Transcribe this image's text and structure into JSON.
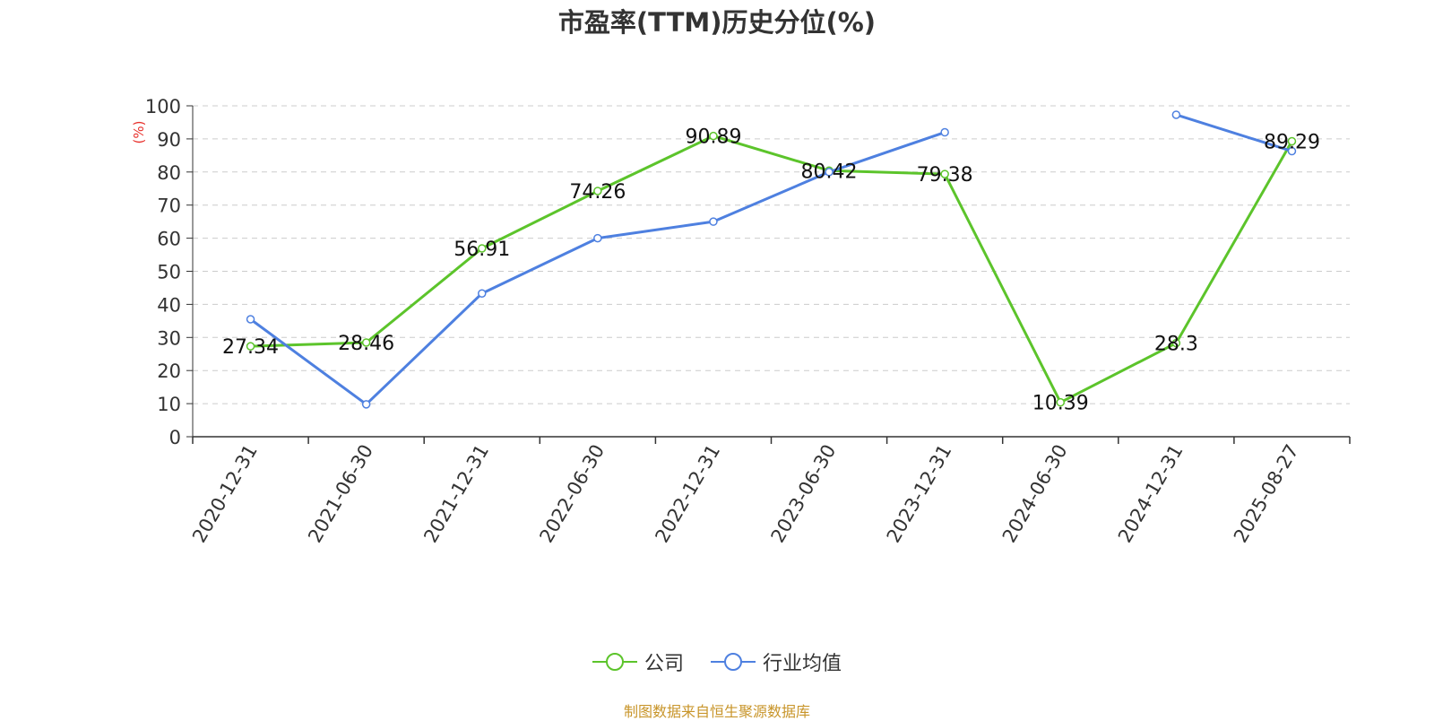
{
  "chart_data": {
    "type": "line",
    "title": "市盈率(TTM)历史分位(%)",
    "ylabel": "(%)",
    "xlabel": "",
    "ylim": [
      0,
      100
    ],
    "yticks": [
      0,
      10,
      20,
      30,
      40,
      50,
      60,
      70,
      80,
      90,
      100
    ],
    "grid": true,
    "legend_position": "bottom-center",
    "categories": [
      "2020-12-31",
      "2021-06-30",
      "2021-12-31",
      "2022-06-30",
      "2022-12-31",
      "2023-06-30",
      "2023-12-31",
      "2024-06-30",
      "2024-12-31",
      "2025-08-27"
    ],
    "series": [
      {
        "name": "公司",
        "color": "#5cc42b",
        "values": [
          27.34,
          28.46,
          56.91,
          74.26,
          90.89,
          80.42,
          79.38,
          10.39,
          28.3,
          89.29
        ],
        "labels": [
          "27.34",
          "28.46",
          "56.91",
          "74.26",
          "90.89",
          "80.42",
          "79.38",
          "10.39",
          "28.3",
          "89.29"
        ]
      },
      {
        "name": "行业均值",
        "color": "#4e80e0",
        "values": [
          35.5,
          9.8,
          43.3,
          60.0,
          65.0,
          80.0,
          92.0,
          null,
          97.3,
          86.3
        ]
      }
    ]
  },
  "source_text": "制图数据来自恒生聚源数据库"
}
